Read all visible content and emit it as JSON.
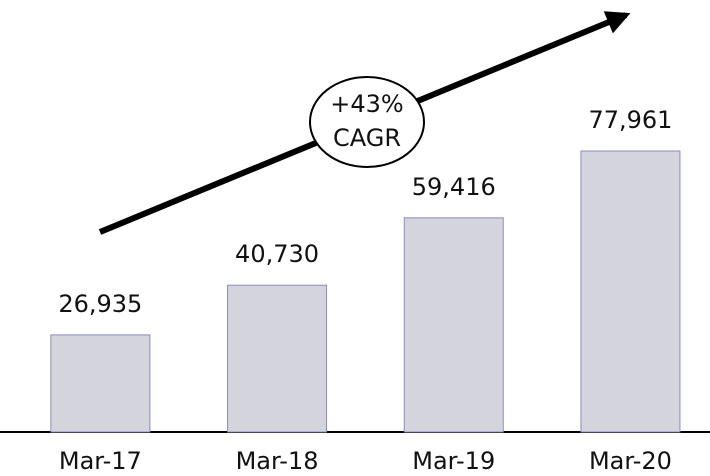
{
  "chart_data": {
    "type": "bar",
    "categories": [
      "Mar-17",
      "Mar-18",
      "Mar-19",
      "Mar-20"
    ],
    "values": [
      26935,
      40730,
      59416,
      77961
    ],
    "value_labels": [
      "26,935",
      "40,730",
      "59,416",
      "77,961"
    ],
    "color": "#d4d4dc",
    "annotation": [
      "+43%",
      "CAGR"
    ]
  }
}
